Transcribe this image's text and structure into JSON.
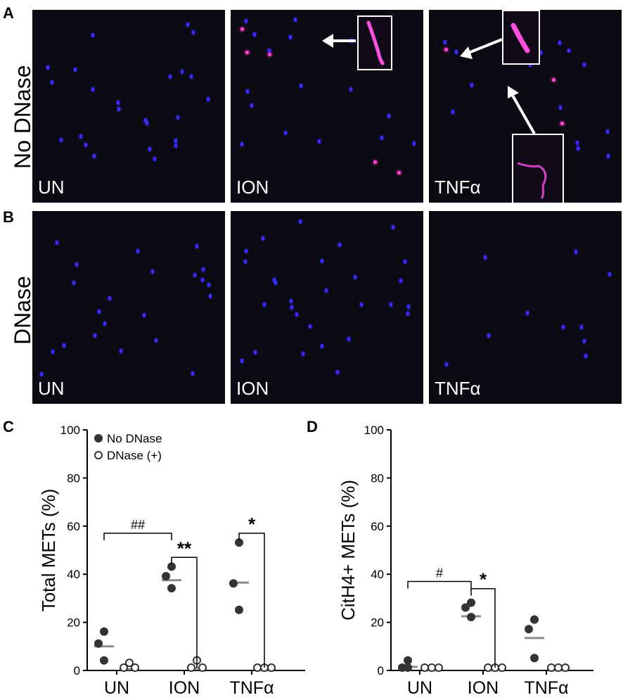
{
  "panels": {
    "A": "A",
    "B": "B",
    "C": "C",
    "D": "D"
  },
  "row_labels": {
    "top": "No DNase",
    "bottom": "DNase"
  },
  "image_labels": {
    "row_a": [
      "UN",
      "ION",
      "TNFα"
    ],
    "row_b": [
      "UN",
      "ION",
      "TNFα"
    ]
  },
  "colors": {
    "nuclei": "#3a2cff",
    "citH4": "#ff40d0",
    "median_line": "#8a8a8a",
    "point": "#333333"
  },
  "chart_data": [
    {
      "type": "scatter",
      "panel": "C",
      "ylabel": "Total METs (%)",
      "categories": [
        "UN",
        "ION",
        "TNFα"
      ],
      "ylim": [
        0,
        100
      ],
      "yticks": [
        0,
        20,
        40,
        60,
        80,
        100
      ],
      "legend_placement": "top-left",
      "series": [
        {
          "name": "No DNase",
          "marker": "filled",
          "values": [
            [
              15,
              10,
              3
            ],
            [
              42,
              38,
              33
            ],
            [
              52,
              35,
              24
            ]
          ],
          "medians": [
            10,
            37.5,
            36.5
          ]
        },
        {
          "name": "DNase (+)",
          "marker": "open",
          "values": [
            [
              2,
              0,
              0
            ],
            [
              3,
              0,
              0
            ],
            [
              0,
              0,
              0
            ]
          ],
          "medians": [
            0.5,
            1,
            0
          ]
        }
      ],
      "annotations": [
        {
          "text": "##",
          "from": "UN",
          "to": "ION",
          "y": 57
        },
        {
          "text": "**",
          "group": "ION",
          "y": 47
        },
        {
          "text": "*",
          "group": "TNFα",
          "y": 57
        }
      ]
    },
    {
      "type": "scatter",
      "panel": "D",
      "ylabel": "CitH4+ METs (%)",
      "categories": [
        "UN",
        "ION",
        "TNFα"
      ],
      "ylim": [
        0,
        100
      ],
      "yticks": [
        0,
        20,
        40,
        60,
        80,
        100
      ],
      "series": [
        {
          "name": "No DNase",
          "marker": "filled",
          "values": [
            [
              3,
              0,
              0
            ],
            [
              27,
              25,
              21
            ],
            [
              20,
              16,
              4
            ]
          ],
          "medians": [
            1.5,
            22.5,
            13.5
          ]
        },
        {
          "name": "DNase (+)",
          "marker": "open",
          "values": [
            [
              0,
              0,
              0
            ],
            [
              0,
              0,
              0
            ],
            [
              0,
              0,
              0
            ]
          ],
          "medians": [
            0,
            0,
            0
          ]
        }
      ],
      "annotations": [
        {
          "text": "#",
          "from": "UN",
          "to": "ION",
          "y": 37
        },
        {
          "text": "*",
          "group": "ION",
          "y": 34
        }
      ]
    }
  ]
}
